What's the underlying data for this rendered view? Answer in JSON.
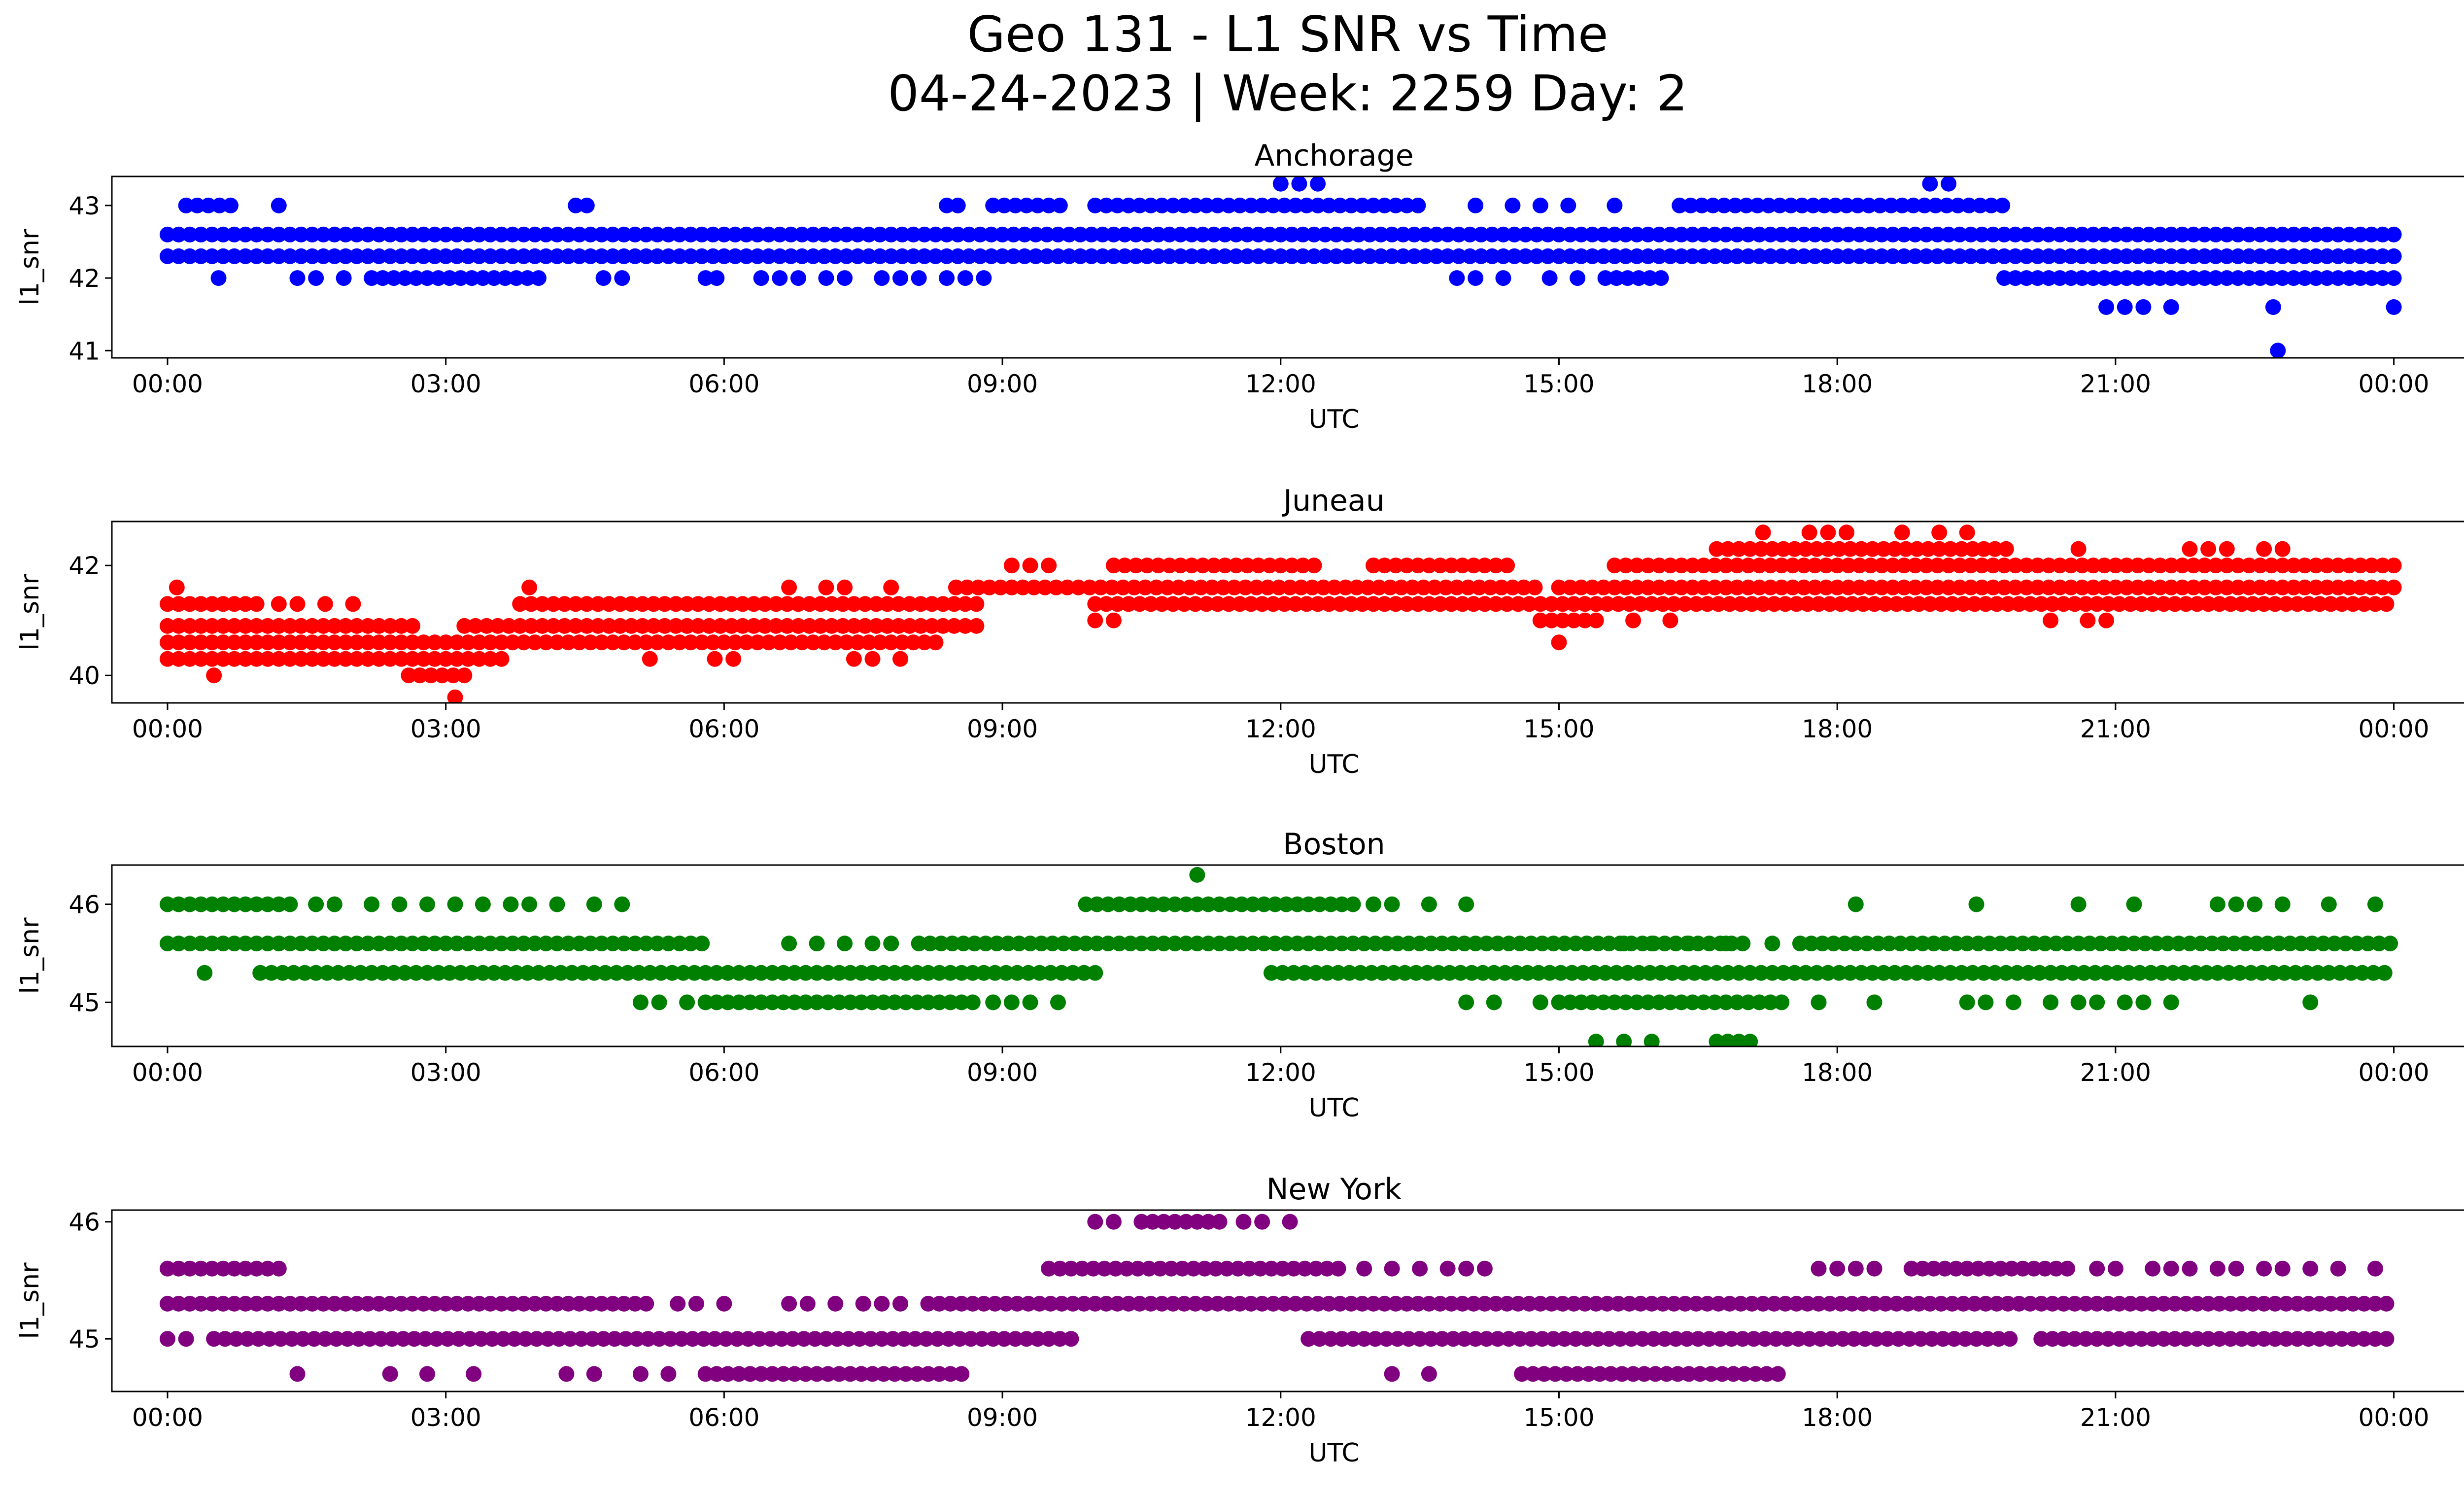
{
  "figure": {
    "title_line1": "Geo 131 - L1 SNR vs Time",
    "title_line2": "04-24-2023 | Week: 2259 Day: 2"
  },
  "chart_data": [
    {
      "type": "scatter",
      "title": "Anchorage",
      "xlabel": "UTC",
      "ylabel": "l1_snr",
      "color": "#0000ff",
      "x_ticks": [
        "00:00",
        "03:00",
        "06:00",
        "09:00",
        "12:00",
        "15:00",
        "18:00",
        "21:00",
        "00:00"
      ],
      "x_range_hours": [
        -0.6,
        25.75
      ],
      "y_ticks": [
        41,
        42,
        43
      ],
      "ylim": [
        40.9,
        43.4
      ],
      "grid": false,
      "bands": [
        {
          "y": 42.6,
          "segments": [
            [
              0,
              24
            ]
          ]
        },
        {
          "y": 42.3,
          "segments": [
            [
              0,
              24
            ]
          ]
        },
        {
          "y": 43.0,
          "segments": [
            [
              0.2,
              0.7
            ],
            [
              4.4,
              4.6
            ],
            [
              8.4,
              8.6
            ],
            [
              8.9,
              9.7
            ],
            [
              10.0,
              13.5
            ],
            [
              16.3,
              19.8
            ]
          ],
          "points": [
            1.2,
            14.1,
            14.5,
            14.8,
            15.1,
            15.6
          ]
        },
        {
          "y": 42.0,
          "segments": [
            [
              2.2,
              4.0
            ],
            [
              5.8,
              6.0
            ],
            [
              15.5,
              16.1
            ],
            [
              19.8,
              24.0
            ]
          ],
          "points": [
            0.55,
            1.4,
            1.6,
            1.9,
            4.7,
            4.9,
            6.4,
            6.6,
            6.8,
            7.1,
            7.3,
            7.7,
            7.9,
            8.1,
            8.4,
            8.6,
            8.8,
            13.9,
            14.1,
            14.4,
            14.9,
            15.2
          ]
        },
        {
          "y": 41.6,
          "points": [
            20.9,
            21.1,
            21.3,
            21.6,
            22.7,
            24.0
          ]
        },
        {
          "y": 43.3,
          "points": [
            12.0,
            12.2,
            12.4,
            19.0,
            19.2
          ]
        },
        {
          "y": 41.0,
          "points": [
            22.75
          ]
        }
      ]
    },
    {
      "type": "scatter",
      "title": "Juneau",
      "xlabel": "UTC",
      "ylabel": "l1_snr",
      "color": "#ff0000",
      "x_ticks": [
        "00:00",
        "03:00",
        "06:00",
        "09:00",
        "12:00",
        "15:00",
        "18:00",
        "21:00",
        "00:00"
      ],
      "x_range_hours": [
        -0.6,
        25.75
      ],
      "y_ticks": [
        40,
        42
      ],
      "ylim": [
        39.5,
        42.8
      ],
      "grid": false,
      "bands": [
        {
          "y": 40.6,
          "segments": [
            [
              0,
              8.3
            ]
          ]
        },
        {
          "y": 40.3,
          "segments": [
            [
              0,
              3.6
            ]
          ],
          "points": [
            5.2,
            5.9,
            6.1,
            7.4,
            7.6,
            7.9
          ]
        },
        {
          "y": 40.0,
          "segments": [
            [
              2.6,
              3.3
            ]
          ],
          "points": [
            0.5
          ]
        },
        {
          "y": 39.6,
          "points": [
            3.1
          ]
        },
        {
          "y": 40.9,
          "segments": [
            [
              0,
              2.7
            ],
            [
              3.2,
              8.8
            ]
          ]
        },
        {
          "y": 41.3,
          "segments": [
            [
              0,
              1.0
            ],
            [
              3.8,
              8.8
            ],
            [
              10.0,
              24.0
            ]
          ],
          "points": [
            1.2,
            1.4,
            1.7,
            2.0
          ]
        },
        {
          "y": 41.6,
          "segments": [
            [
              8.5,
              14.8
            ],
            [
              15.0,
              24.0
            ]
          ],
          "points": [
            0.1,
            3.9,
            6.7,
            7.1,
            7.3,
            7.8
          ]
        },
        {
          "y": 42.0,
          "segments": [
            [
              10.2,
              12.4
            ],
            [
              13.0,
              14.5
            ],
            [
              15.6,
              24.0
            ]
          ],
          "points": [
            9.1,
            9.3,
            9.5
          ]
        },
        {
          "y": 41.0,
          "segments": [
            [
              14.8,
              15.5
            ]
          ],
          "points": [
            10.0,
            10.2,
            15.8,
            16.2,
            20.3,
            20.7,
            20.9
          ]
        },
        {
          "y": 42.3,
          "segments": [
            [
              16.7,
              19.9
            ]
          ],
          "points": [
            20.6,
            21.8,
            22.0,
            22.2,
            22.6,
            22.8
          ]
        },
        {
          "y": 42.6,
          "points": [
            17.2,
            17.7,
            17.9,
            18.1,
            18.7,
            19.1,
            19.4
          ]
        },
        {
          "y": 40.6,
          "points": [
            15.0
          ]
        }
      ]
    },
    {
      "type": "scatter",
      "title": "Boston",
      "xlabel": "UTC",
      "ylabel": "l1_snr",
      "color": "#008000",
      "x_ticks": [
        "00:00",
        "03:00",
        "06:00",
        "09:00",
        "12:00",
        "15:00",
        "18:00",
        "21:00",
        "00:00"
      ],
      "x_range_hours": [
        -0.6,
        25.75
      ],
      "y_ticks": [
        45,
        46
      ],
      "ylim": [
        44.55,
        46.4
      ],
      "grid": false,
      "bands": [
        {
          "y": 45.6,
          "segments": [
            [
              0,
              5.8
            ],
            [
              8.1,
              17.0
            ],
            [
              17.6,
              24.0
            ]
          ],
          "points": [
            6.7,
            7.0,
            7.3,
            7.6,
            7.8,
            15.3,
            15.7,
            16.0,
            16.4,
            16.8,
            17.3
          ]
        },
        {
          "y": 45.3,
          "segments": [
            [
              1.0,
              10.0
            ],
            [
              11.9,
              24.0
            ]
          ],
          "points": [
            0.4
          ]
        },
        {
          "y": 46.0,
          "segments": [
            [
              0,
              1.4
            ],
            [
              9.9,
              12.8
            ]
          ],
          "points": [
            1.6,
            1.8,
            2.2,
            2.5,
            2.8,
            3.1,
            3.4,
            3.7,
            3.9,
            4.2,
            4.6,
            4.9,
            13.0,
            13.2,
            13.6,
            14.0,
            18.2,
            19.5,
            20.6,
            21.2,
            22.1,
            22.3,
            22.5,
            22.8,
            23.3,
            23.8
          ]
        },
        {
          "y": 45.0,
          "segments": [
            [
              5.8,
              8.7
            ],
            [
              15.0,
              17.4
            ]
          ],
          "points": [
            5.1,
            5.3,
            5.6,
            8.9,
            9.1,
            9.3,
            9.6,
            14.0,
            14.3,
            14.8,
            17.8,
            18.4,
            19.4,
            19.6,
            19.9,
            20.3,
            20.6,
            20.8,
            21.1,
            21.3,
            21.6,
            23.1
          ]
        },
        {
          "y": 44.6,
          "segments": [
            [
              16.7,
              17.1
            ]
          ],
          "points": [
            15.4,
            15.7,
            16.0
          ]
        },
        {
          "y": 46.3,
          "points": [
            11.1
          ]
        }
      ]
    },
    {
      "type": "scatter",
      "title": "New York",
      "xlabel": "UTC",
      "ylabel": "l1_snr",
      "color": "#800080",
      "x_ticks": [
        "00:00",
        "03:00",
        "06:00",
        "09:00",
        "12:00",
        "15:00",
        "18:00",
        "21:00",
        "00:00"
      ],
      "x_range_hours": [
        -0.6,
        25.75
      ],
      "y_ticks": [
        45,
        46
      ],
      "ylim": [
        44.55,
        46.1
      ],
      "grid": false,
      "bands": [
        {
          "y": 45.3,
          "segments": [
            [
              0,
              5.2
            ],
            [
              8.2,
              24.0
            ]
          ],
          "points": [
            5.5,
            5.7,
            6.0,
            6.7,
            6.9,
            7.2,
            7.5,
            7.7,
            7.9
          ]
        },
        {
          "y": 45.0,
          "segments": [
            [
              0.5,
              9.8
            ],
            [
              12.3,
              19.9
            ],
            [
              20.2,
              24.0
            ]
          ],
          "points": [
            0,
            0.2
          ]
        },
        {
          "y": 45.6,
          "segments": [
            [
              0,
              1.1
            ],
            [
              9.5,
              12.7
            ],
            [
              18.8,
              20.5
            ]
          ],
          "points": [
            1.2,
            12.9,
            13.2,
            13.5,
            13.8,
            14.0,
            14.2,
            17.8,
            18.0,
            18.2,
            18.4,
            20.8,
            21.0,
            21.4,
            21.6,
            21.8,
            22.1,
            22.3,
            22.6,
            22.8,
            23.1,
            23.4,
            23.8
          ]
        },
        {
          "y": 44.7,
          "segments": [
            [
              5.8,
              8.6
            ],
            [
              14.6,
              17.4
            ]
          ],
          "points": [
            1.4,
            2.4,
            2.8,
            3.3,
            4.3,
            4.6,
            5.1,
            5.4,
            13.2,
            13.6
          ]
        },
        {
          "y": 46.0,
          "segments": [
            [
              10.5,
              11.4
            ]
          ],
          "points": [
            10.0,
            10.2,
            11.6,
            11.8,
            12.1
          ]
        }
      ]
    }
  ]
}
